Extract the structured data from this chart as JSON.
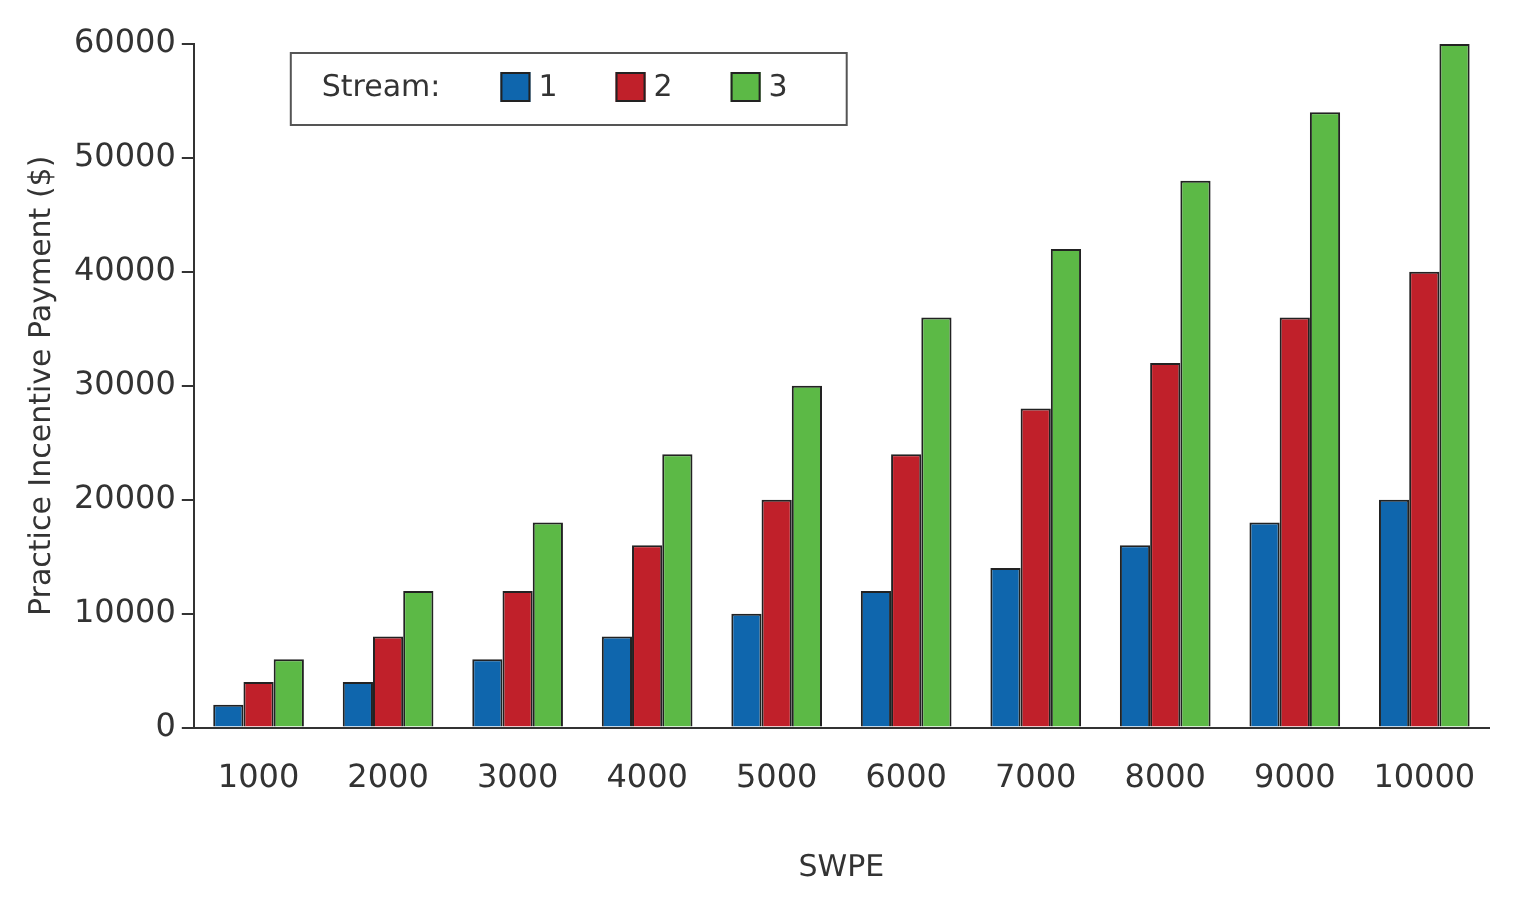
{
  "chart_data": {
    "type": "bar",
    "xlabel": "SWPE",
    "ylabel": "Practice Incentive Payment ($)",
    "legend_title": "Stream:",
    "legend": "top left",
    "grid": false,
    "categories": [
      "1000",
      "2000",
      "3000",
      "4000",
      "5000",
      "6000",
      "7000",
      "8000",
      "9000",
      "10000"
    ],
    "series": [
      {
        "name": "1",
        "color": "#0f66ad",
        "values": [
          2000,
          4000,
          6000,
          8000,
          10000,
          12000,
          14000,
          16000,
          18000,
          20000
        ]
      },
      {
        "name": "2",
        "color": "#c0202a",
        "values": [
          4000,
          8000,
          12000,
          16000,
          20000,
          24000,
          28000,
          32000,
          36000,
          40000
        ]
      },
      {
        "name": "3",
        "color": "#5cb946",
        "values": [
          6000,
          12000,
          18000,
          24000,
          30000,
          36000,
          42000,
          48000,
          54000,
          60000
        ]
      }
    ],
    "ylim": [
      0,
      60000
    ],
    "yticks": [
      0,
      10000,
      20000,
      30000,
      40000,
      50000,
      60000
    ]
  }
}
